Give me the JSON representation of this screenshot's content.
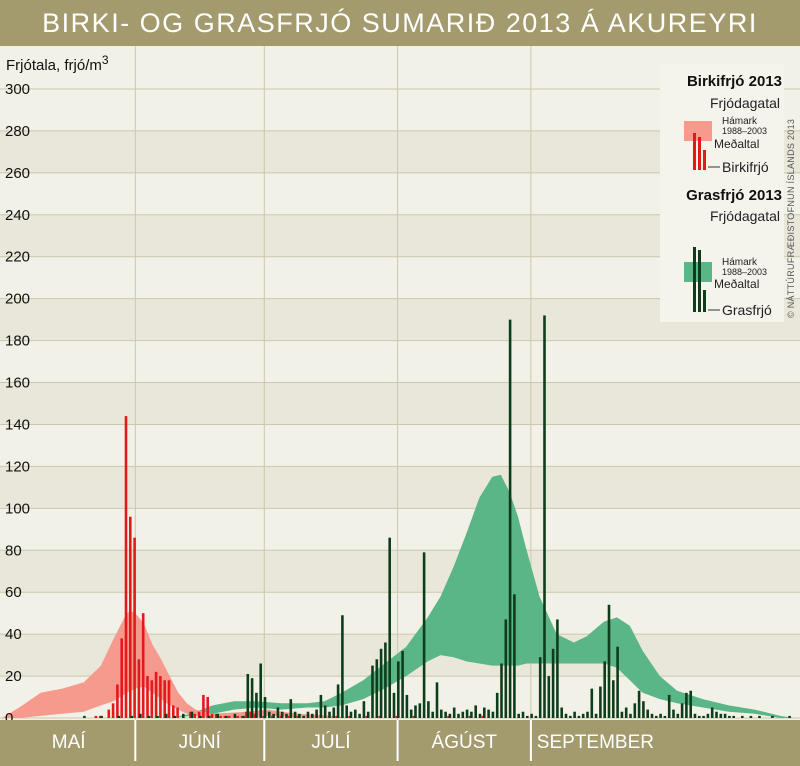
{
  "chart_data": {
    "type": "bar",
    "title": "BIRKI- OG GRASFRJÓ SUMARIÐ 2013 Á AKUREYRI",
    "ylabel_text": "Frjótala, frjó/m",
    "ylabel_sup": "3",
    "ylim": [
      0,
      300
    ],
    "yticks": [
      0,
      20,
      40,
      60,
      80,
      100,
      120,
      140,
      160,
      180,
      200,
      220,
      240,
      260,
      280,
      300
    ],
    "grid": true,
    "x_unit": "day of season (1 = 1 May)",
    "months": [
      "MAÍ",
      "JÚNÍ",
      "JÚLÍ",
      "ÁGÚST",
      "SEPTEMBER"
    ],
    "month_days": [
      31,
      30,
      31,
      31,
      30
    ],
    "copyright": "© NÁTTÚRUFRÆÐISTOFNUN ÍSLANDS 2013",
    "colors": {
      "background": "#a39a6e",
      "plot": "#f2f1e8",
      "plot_stripe": "#e9e7d9",
      "grid": "#ccc7ad",
      "birch_bars": "#e4191c",
      "birch_band": "#f59a8c",
      "grass_bars": "#0e3d1c",
      "grass_band": "#5ab587",
      "title_text": "#ffffff"
    },
    "legend": {
      "position": "top-right",
      "birch": {
        "title": "Birkifrjó 2013",
        "subtitle": "Frjódagatal",
        "max_label": "Hámark",
        "period_label": "1988–2003",
        "mean_label": "Meðaltal",
        "series_label": "Birkifrjó"
      },
      "grass": {
        "title": "Grasfrjó 2013",
        "subtitle": "Frjódagatal",
        "max_label": "Hámark",
        "period_label": "1988–2003",
        "mean_label": "Meðaltal",
        "series_label": "Grasfrjó"
      }
    },
    "series": [
      {
        "name": "Birkifrjó",
        "values": [
          [
            23,
            1
          ],
          [
            24,
            1
          ],
          [
            26,
            4
          ],
          [
            27,
            7
          ],
          [
            28,
            16
          ],
          [
            29,
            38
          ],
          [
            30,
            144
          ],
          [
            31,
            96
          ],
          [
            32,
            86
          ],
          [
            33,
            28
          ],
          [
            34,
            50
          ],
          [
            35,
            20
          ],
          [
            36,
            18
          ],
          [
            37,
            22
          ],
          [
            38,
            20
          ],
          [
            39,
            18
          ],
          [
            40,
            18
          ],
          [
            41,
            6
          ],
          [
            42,
            5
          ],
          [
            45,
            3
          ],
          [
            46,
            2
          ],
          [
            47,
            3
          ],
          [
            48,
            11
          ],
          [
            49,
            10
          ],
          [
            50,
            2
          ],
          [
            51,
            2
          ],
          [
            52,
            1
          ],
          [
            53,
            1
          ],
          [
            54,
            1
          ],
          [
            56,
            1
          ],
          [
            57,
            1
          ],
          [
            58,
            3
          ],
          [
            59,
            3
          ],
          [
            60,
            2
          ],
          [
            62,
            1
          ],
          [
            64,
            1
          ],
          [
            66,
            1
          ],
          [
            68,
            1
          ],
          [
            70,
            1
          ],
          [
            79,
            1
          ],
          [
            82,
            1
          ],
          [
            86,
            1
          ],
          [
            89,
            1
          ],
          [
            93,
            1
          ],
          [
            97,
            1
          ],
          [
            105,
            1
          ],
          [
            110,
            1
          ],
          [
            113,
            1
          ]
        ]
      },
      {
        "name": "Grasfrjó",
        "values": [
          [
            20,
            1
          ],
          [
            24,
            1
          ],
          [
            28,
            1
          ],
          [
            31,
            1
          ],
          [
            33,
            2
          ],
          [
            35,
            1
          ],
          [
            37,
            1
          ],
          [
            39,
            2
          ],
          [
            41,
            1
          ],
          [
            43,
            2
          ],
          [
            45,
            3
          ],
          [
            47,
            1
          ],
          [
            49,
            1
          ],
          [
            51,
            2
          ],
          [
            53,
            1
          ],
          [
            55,
            2
          ],
          [
            57,
            1
          ],
          [
            58,
            21
          ],
          [
            59,
            19
          ],
          [
            60,
            12
          ],
          [
            61,
            26
          ],
          [
            62,
            10
          ],
          [
            63,
            3
          ],
          [
            64,
            2
          ],
          [
            65,
            5
          ],
          [
            66,
            3
          ],
          [
            67,
            2
          ],
          [
            68,
            9
          ],
          [
            69,
            3
          ],
          [
            70,
            2
          ],
          [
            71,
            1
          ],
          [
            72,
            3
          ],
          [
            73,
            2
          ],
          [
            74,
            4
          ],
          [
            75,
            11
          ],
          [
            76,
            6
          ],
          [
            77,
            3
          ],
          [
            78,
            5
          ],
          [
            79,
            16
          ],
          [
            80,
            49
          ],
          [
            81,
            6
          ],
          [
            82,
            3
          ],
          [
            83,
            4
          ],
          [
            84,
            2
          ],
          [
            85,
            8
          ],
          [
            86,
            3
          ],
          [
            87,
            25
          ],
          [
            88,
            28
          ],
          [
            89,
            33
          ],
          [
            90,
            36
          ],
          [
            91,
            86
          ],
          [
            92,
            12
          ],
          [
            93,
            27
          ],
          [
            94,
            32
          ],
          [
            95,
            11
          ],
          [
            96,
            4
          ],
          [
            97,
            6
          ],
          [
            98,
            7
          ],
          [
            99,
            79
          ],
          [
            100,
            8
          ],
          [
            101,
            3
          ],
          [
            102,
            17
          ],
          [
            103,
            4
          ],
          [
            104,
            3
          ],
          [
            105,
            2
          ],
          [
            106,
            5
          ],
          [
            107,
            2
          ],
          [
            108,
            3
          ],
          [
            109,
            4
          ],
          [
            110,
            3
          ],
          [
            111,
            6
          ],
          [
            112,
            2
          ],
          [
            113,
            5
          ],
          [
            114,
            4
          ],
          [
            115,
            3
          ],
          [
            116,
            12
          ],
          [
            117,
            26
          ],
          [
            118,
            47
          ],
          [
            119,
            190
          ],
          [
            120,
            59
          ],
          [
            121,
            2
          ],
          [
            122,
            3
          ],
          [
            123,
            1
          ],
          [
            124,
            2
          ],
          [
            125,
            1
          ],
          [
            126,
            29
          ],
          [
            127,
            192
          ],
          [
            128,
            20
          ],
          [
            129,
            33
          ],
          [
            130,
            47
          ],
          [
            131,
            5
          ],
          [
            132,
            2
          ],
          [
            133,
            1
          ],
          [
            134,
            3
          ],
          [
            135,
            1
          ],
          [
            136,
            2
          ],
          [
            137,
            3
          ],
          [
            138,
            14
          ],
          [
            139,
            2
          ],
          [
            140,
            15
          ],
          [
            141,
            27
          ],
          [
            142,
            54
          ],
          [
            143,
            18
          ],
          [
            144,
            34
          ],
          [
            145,
            3
          ],
          [
            146,
            5
          ],
          [
            147,
            2
          ],
          [
            148,
            7
          ],
          [
            149,
            13
          ],
          [
            150,
            8
          ],
          [
            151,
            4
          ],
          [
            152,
            2
          ],
          [
            153,
            1
          ],
          [
            154,
            2
          ],
          [
            155,
            1
          ],
          [
            156,
            11
          ],
          [
            157,
            4
          ],
          [
            158,
            2
          ],
          [
            159,
            7
          ],
          [
            160,
            12
          ],
          [
            161,
            13
          ],
          [
            162,
            2
          ],
          [
            163,
            1
          ],
          [
            164,
            1
          ],
          [
            165,
            2
          ],
          [
            166,
            5
          ],
          [
            167,
            3
          ],
          [
            168,
            2
          ],
          [
            169,
            2
          ],
          [
            170,
            1
          ],
          [
            171,
            1
          ],
          [
            173,
            1
          ],
          [
            175,
            1
          ],
          [
            177,
            1
          ],
          [
            180,
            1
          ],
          [
            184,
            1
          ]
        ]
      }
    ],
    "birch_band": {
      "name": "Hámark / Meðaltal 1988–2003",
      "points": [
        [
          1,
          0,
          0
        ],
        [
          5,
          5,
          0
        ],
        [
          10,
          12,
          1
        ],
        [
          15,
          14,
          2
        ],
        [
          20,
          17,
          3
        ],
        [
          24,
          25,
          6
        ],
        [
          27,
          38,
          8
        ],
        [
          30,
          50,
          12
        ],
        [
          31,
          51,
          13
        ],
        [
          32,
          50,
          14
        ],
        [
          34,
          45,
          15
        ],
        [
          36,
          35,
          12
        ],
        [
          38,
          28,
          9
        ],
        [
          40,
          20,
          6
        ],
        [
          42,
          12,
          4
        ],
        [
          44,
          7,
          2
        ],
        [
          46,
          4,
          1
        ],
        [
          50,
          2,
          0
        ],
        [
          58,
          3,
          0
        ],
        [
          63,
          4,
          1
        ],
        [
          66,
          3,
          1
        ],
        [
          70,
          2,
          0
        ],
        [
          78,
          1,
          0
        ],
        [
          82,
          0,
          0
        ]
      ]
    },
    "grass_band": {
      "name": "Hámark / Meðaltal 1988–2003",
      "points": [
        [
          40,
          0,
          0
        ],
        [
          45,
          2,
          1
        ],
        [
          50,
          6,
          2
        ],
        [
          55,
          8,
          4
        ],
        [
          60,
          8,
          5
        ],
        [
          66,
          7,
          4
        ],
        [
          72,
          7,
          5
        ],
        [
          76,
          8,
          5
        ],
        [
          80,
          12,
          6
        ],
        [
          85,
          18,
          9
        ],
        [
          90,
          26,
          14
        ],
        [
          95,
          34,
          20
        ],
        [
          100,
          48,
          27
        ],
        [
          103,
          58,
          30
        ],
        [
          106,
          72,
          29
        ],
        [
          109,
          88,
          27
        ],
        [
          112,
          105,
          26
        ],
        [
          115,
          115,
          25
        ],
        [
          117,
          116,
          25
        ],
        [
          119,
          108,
          25
        ],
        [
          121,
          96,
          25
        ],
        [
          123,
          80,
          26
        ],
        [
          126,
          58,
          26
        ],
        [
          130,
          40,
          26
        ],
        [
          134,
          36,
          26
        ],
        [
          137,
          39,
          26
        ],
        [
          141,
          46,
          26
        ],
        [
          144,
          48,
          24
        ],
        [
          147,
          44,
          18
        ],
        [
          150,
          32,
          12
        ],
        [
          154,
          20,
          9
        ],
        [
          158,
          13,
          7
        ],
        [
          164,
          9,
          5
        ],
        [
          170,
          6,
          3
        ],
        [
          176,
          4,
          2
        ],
        [
          182,
          1,
          0
        ],
        [
          185,
          0,
          0
        ]
      ]
    }
  }
}
